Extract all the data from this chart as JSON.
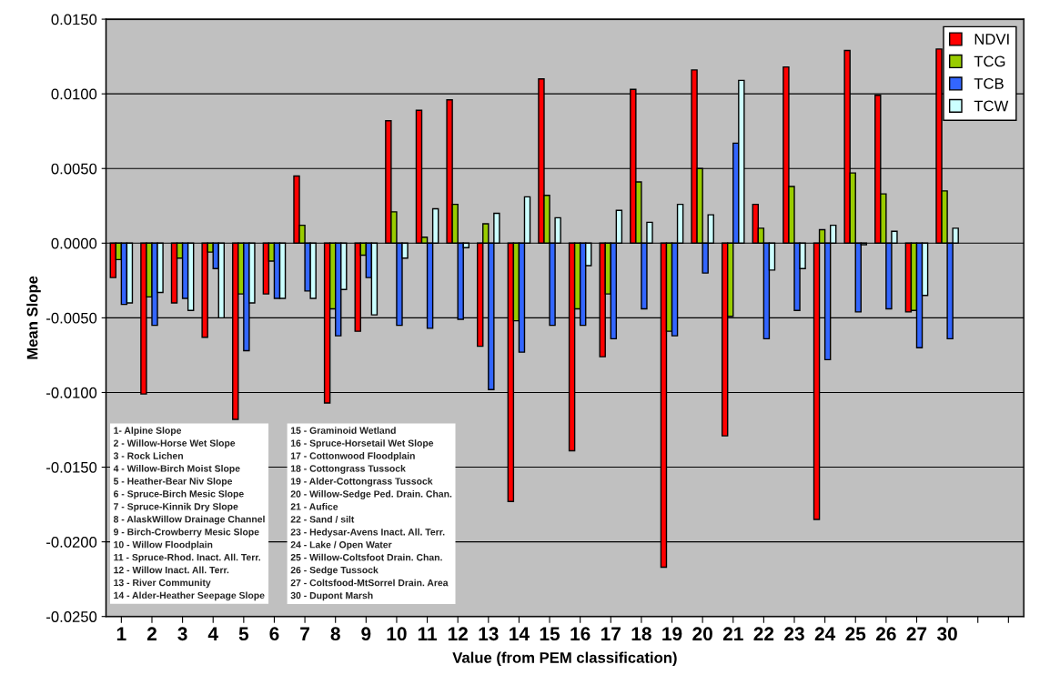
{
  "chart_data": {
    "type": "bar",
    "xlabel": "Value (from PEM classification)",
    "ylabel": "Mean Slope",
    "categories": [
      "1",
      "2",
      "3",
      "4",
      "5",
      "6",
      "7",
      "8",
      "9",
      "10",
      "11",
      "12",
      "13",
      "14",
      "15",
      "16",
      "17",
      "18",
      "19",
      "20",
      "21",
      "22",
      "23",
      "24",
      "25",
      "26",
      "27",
      "30",
      null,
      null
    ],
    "series": [
      {
        "name": "NDVI",
        "color": "#ff0000",
        "values": [
          -0.0023,
          -0.0101,
          -0.004,
          -0.0063,
          -0.0118,
          -0.0034,
          0.0045,
          -0.0107,
          -0.0059,
          0.0082,
          0.0089,
          0.0096,
          -0.0069,
          -0.0173,
          0.011,
          -0.0139,
          -0.0076,
          0.0103,
          -0.0217,
          0.0116,
          -0.0129,
          0.0026,
          0.0118,
          -0.0185,
          0.0129,
          0.0099,
          -0.0046,
          0.013,
          null,
          null
        ]
      },
      {
        "name": "TCG",
        "color": "#99cc00",
        "values": [
          -0.0011,
          -0.0036,
          -0.001,
          -0.0006,
          -0.0034,
          -0.0012,
          0.0012,
          -0.0044,
          -0.0008,
          0.0021,
          0.0004,
          0.0026,
          0.0013,
          -0.0052,
          0.0032,
          -0.0044,
          -0.0034,
          0.0041,
          -0.0059,
          0.005,
          -0.0049,
          0.001,
          0.0038,
          0.0009,
          0.0047,
          0.0033,
          -0.0045,
          0.0035,
          null,
          null
        ]
      },
      {
        "name": "TCB",
        "color": "#3366ff",
        "values": [
          -0.0041,
          -0.0055,
          -0.0037,
          -0.0017,
          -0.0072,
          -0.0037,
          -0.0032,
          -0.0062,
          -0.0023,
          -0.0055,
          -0.0057,
          -0.0051,
          -0.0098,
          -0.0073,
          -0.0055,
          -0.0055,
          -0.0064,
          -0.0044,
          -0.0062,
          -0.002,
          0.0067,
          -0.0064,
          -0.0045,
          -0.0078,
          -0.0046,
          -0.0044,
          -0.007,
          -0.0064,
          null,
          null
        ]
      },
      {
        "name": "TCW",
        "color": "#ccffff",
        "values": [
          -0.004,
          -0.0033,
          -0.0045,
          -0.005,
          -0.004,
          -0.0037,
          -0.0037,
          -0.0031,
          -0.0048,
          -0.001,
          0.0023,
          -0.0003,
          0.002,
          0.0031,
          0.0017,
          -0.0015,
          0.0022,
          0.0014,
          0.0026,
          0.0019,
          0.0109,
          -0.0018,
          -0.0017,
          0.0012,
          -0.0001,
          0.0008,
          -0.0035,
          0.001,
          null,
          null
        ]
      }
    ],
    "ylim": [
      -0.025,
      0.015
    ],
    "yticks": [
      {
        "value": -0.025,
        "label": "-0.0250"
      },
      {
        "value": -0.02,
        "label": "-0.0200"
      },
      {
        "value": -0.015,
        "label": "-0.0150"
      },
      {
        "value": -0.01,
        "label": "-0.0100"
      },
      {
        "value": -0.005,
        "label": "-0.0050"
      },
      {
        "value": 0,
        "label": "0.0000"
      },
      {
        "value": 0.005,
        "label": "0.0050"
      },
      {
        "value": 0.01,
        "label": "0.0100"
      },
      {
        "value": 0.015,
        "label": "0.0150"
      }
    ],
    "grid": "y",
    "legend": "top right",
    "annotations": [
      "1- Alpine Slope",
      "2 - Willow-Horse Wet Slope",
      "3 - Rock Lichen",
      "4 - Willow-Birch Moist Slope",
      "5 - Heather-Bear Niv Slope",
      "6 - Spruce-Birch Mesic Slope",
      "7 - Spruce-Kinnik Dry Slope",
      "8 - AlaskWillow Drainage Channel",
      "9 - Birch-Crowberry Mesic Slope",
      "10 - Willow Floodplain",
      "11 - Spruce-Rhod. Inact. All. Terr.",
      "12 - Willow Inact. All. Terr.",
      "13 - River Community",
      "14 - Alder-Heather Seepage Slope",
      "15 - Graminoid Wetland",
      "16 - Spruce-Horsetail Wet Slope",
      "17 - Cottonwood Floodplain",
      "18 - Cottongrass Tussock",
      "19 - Alder-Cottongrass Tussock",
      "20 - Willow-Sedge Ped. Drain. Chan.",
      "21 - Aufice",
      "22 - Sand / silt",
      "23 - Hedysar-Avens Inact. All. Terr.",
      "24 - Lake / Open Water",
      "25 - Willow-Coltsfoot Drain. Chan.",
      "26 - Sedge Tussock",
      "27 - Coltsfood-MtSorrel Drain. Area",
      "30 - Dupont Marsh"
    ]
  }
}
